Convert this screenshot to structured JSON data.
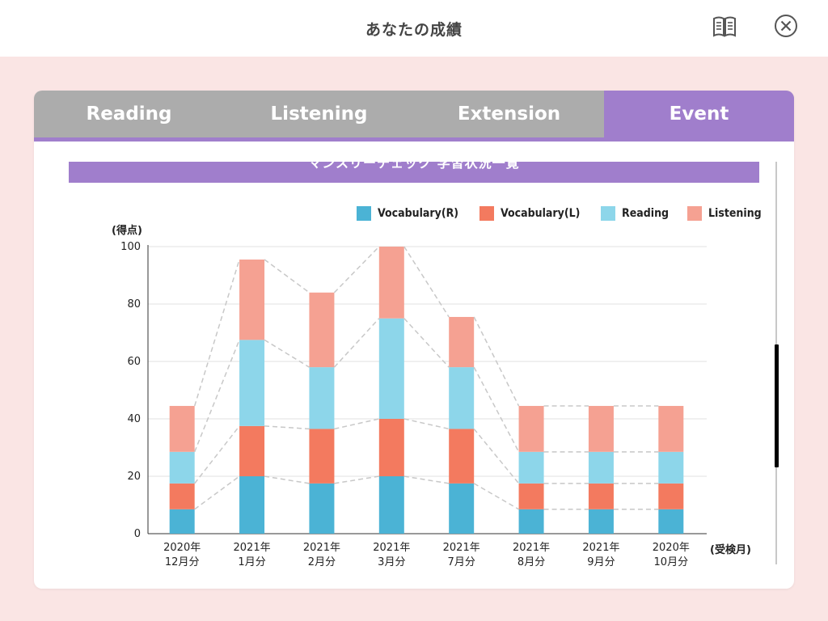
{
  "header": {
    "title": "あなたの成績",
    "book_icon": "book-icon",
    "close_icon": "close-circle-icon"
  },
  "tabs": [
    {
      "label": "Reading",
      "active": false
    },
    {
      "label": "Listening",
      "active": false
    },
    {
      "label": "Extension",
      "active": false
    },
    {
      "label": "Event",
      "active": true
    }
  ],
  "section": {
    "banner_title": "マンスリーチェック 学習状況一覧"
  },
  "colors": {
    "accent": "#a07ecc",
    "tab_inactive": "#acacac",
    "background": "#fae5e4"
  },
  "chart_data": {
    "type": "bar",
    "stacked": true,
    "ylabel": "(得点)",
    "xlabel": "(受検月)",
    "ylim": [
      0,
      100
    ],
    "yticks": [
      0,
      20,
      40,
      60,
      80,
      100
    ],
    "grid": true,
    "legend_position": "top-right",
    "categories": [
      [
        "2020年",
        "12月分"
      ],
      [
        "2021年",
        "1月分"
      ],
      [
        "2021年",
        "2月分"
      ],
      [
        "2021年",
        "3月分"
      ],
      [
        "2021年",
        "7月分"
      ],
      [
        "2021年",
        "8月分"
      ],
      [
        "2021年",
        "9月分"
      ],
      [
        "2020年",
        "10月分"
      ]
    ],
    "series": [
      {
        "name": "Vocabulary(R)",
        "color": "#4bb3d5",
        "values": [
          8.5,
          20,
          17.5,
          20,
          17.5,
          8.5,
          8.5,
          8.5
        ]
      },
      {
        "name": "Vocabulary(L)",
        "color": "#f37a5f",
        "values": [
          9,
          17.5,
          19,
          20,
          19,
          9,
          9,
          9
        ]
      },
      {
        "name": "Reading",
        "color": "#8dd6ea",
        "values": [
          11,
          30,
          21.5,
          35,
          21.5,
          11,
          11,
          11
        ]
      },
      {
        "name": "Listening",
        "color": "#f5a192",
        "values": [
          16,
          28,
          26,
          25,
          17.5,
          16,
          16,
          16
        ]
      }
    ]
  }
}
